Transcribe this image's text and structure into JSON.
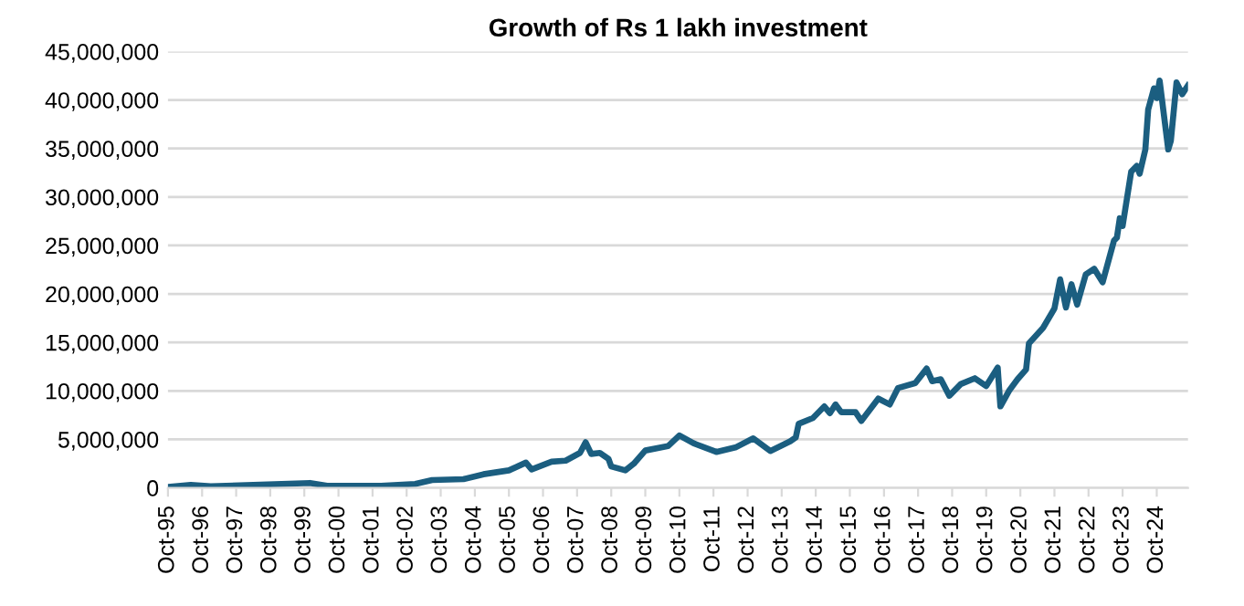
{
  "chart_data": {
    "type": "line",
    "title": "Growth of Rs 1 lakh investment",
    "x": [
      "1995-10",
      "1996-06",
      "1997-01",
      "1999-12",
      "2000-06",
      "2002-01",
      "2003-01",
      "2003-07",
      "2004-06",
      "2005-01",
      "2005-10",
      "2006-04",
      "2006-06",
      "2007-01",
      "2007-06",
      "2007-11",
      "2008-01",
      "2008-03",
      "2008-06",
      "2008-09",
      "2008-10",
      "2009-03",
      "2009-06",
      "2009-10",
      "2010-06",
      "2010-10",
      "2011-03",
      "2011-11",
      "2012-06",
      "2012-12",
      "2013-06",
      "2014-01",
      "2014-03",
      "2014-04",
      "2014-09",
      "2015-01",
      "2015-03",
      "2015-05",
      "2015-07",
      "2015-12",
      "2016-02",
      "2016-08",
      "2016-12",
      "2017-03",
      "2017-09",
      "2018-01",
      "2018-03",
      "2018-06",
      "2018-09",
      "2019-01",
      "2019-06",
      "2019-10",
      "2020-02",
      "2020-03",
      "2020-06",
      "2020-09",
      "2020-12",
      "2021-01",
      "2021-06",
      "2021-10",
      "2021-12",
      "2022-02",
      "2022-04",
      "2022-06",
      "2022-09",
      "2022-12",
      "2023-03",
      "2023-07",
      "2023-08",
      "2023-09",
      "2023-10",
      "2024-01",
      "2024-03",
      "2024-04",
      "2024-06",
      "2024-07",
      "2024-09",
      "2024-10",
      "2024-11",
      "2025-02",
      "2025-03",
      "2025-05",
      "2025-07",
      "2025-09"
    ],
    "series": [
      {
        "color": "#1b5e80",
        "values": [
          100000,
          300000,
          150000,
          500000,
          200000,
          200000,
          400000,
          800000,
          900000,
          1400000,
          1800000,
          2600000,
          1900000,
          2700000,
          2800000,
          3600000,
          4700000,
          3500000,
          3600000,
          3000000,
          2200000,
          1800000,
          2500000,
          3850000,
          4300000,
          5400000,
          4600000,
          3700000,
          4200000,
          5100000,
          3800000,
          4800000,
          5200000,
          6600000,
          7200000,
          8400000,
          7700000,
          8600000,
          7800000,
          7800000,
          6900000,
          9200000,
          8600000,
          10300000,
          10800000,
          12300000,
          11000000,
          11200000,
          9500000,
          10700000,
          11300000,
          10500000,
          12400000,
          8400000,
          10000000,
          11200000,
          12200000,
          14900000,
          16500000,
          18500000,
          21500000,
          18600000,
          21000000,
          18900000,
          22000000,
          22600000,
          21200000,
          25500000,
          25800000,
          27800000,
          27000000,
          32600000,
          33200000,
          32400000,
          34900000,
          39000000,
          41200000,
          40200000,
          42000000,
          34900000,
          35800000,
          41800000,
          40600000,
          41500000
        ]
      }
    ],
    "xlim": [
      "1995-10",
      "2025-09"
    ],
    "xticks": [
      {
        "value": "1995-10",
        "label": "Oct-95"
      },
      {
        "value": "1996-10",
        "label": "Oct-96"
      },
      {
        "value": "1997-10",
        "label": "Oct-97"
      },
      {
        "value": "1998-10",
        "label": "Oct-98"
      },
      {
        "value": "1999-10",
        "label": "Oct-99"
      },
      {
        "value": "2000-10",
        "label": "Oct-00"
      },
      {
        "value": "2001-10",
        "label": "Oct-01"
      },
      {
        "value": "2002-10",
        "label": "Oct-02"
      },
      {
        "value": "2003-10",
        "label": "Oct-03"
      },
      {
        "value": "2004-10",
        "label": "Oct-04"
      },
      {
        "value": "2005-10",
        "label": "Oct-05"
      },
      {
        "value": "2006-10",
        "label": "Oct-06"
      },
      {
        "value": "2007-10",
        "label": "Oct-07"
      },
      {
        "value": "2008-10",
        "label": "Oct-08"
      },
      {
        "value": "2009-10",
        "label": "Oct-09"
      },
      {
        "value": "2010-10",
        "label": "Oct-10"
      },
      {
        "value": "2011-10",
        "label": "Oct-11"
      },
      {
        "value": "2012-10",
        "label": "Oct-12"
      },
      {
        "value": "2013-10",
        "label": "Oct-13"
      },
      {
        "value": "2014-10",
        "label": "Oct-14"
      },
      {
        "value": "2015-10",
        "label": "Oct-15"
      },
      {
        "value": "2016-10",
        "label": "Oct-16"
      },
      {
        "value": "2017-10",
        "label": "Oct-17"
      },
      {
        "value": "2018-10",
        "label": "Oct-18"
      },
      {
        "value": "2019-10",
        "label": "Oct-19"
      },
      {
        "value": "2020-10",
        "label": "Oct-20"
      },
      {
        "value": "2021-10",
        "label": "Oct-21"
      },
      {
        "value": "2022-10",
        "label": "Oct-22"
      },
      {
        "value": "2023-10",
        "label": "Oct-23"
      },
      {
        "value": "2024-10",
        "label": "Oct-24"
      }
    ],
    "ylim": [
      0,
      45000000
    ],
    "yticks": [
      {
        "value": 0,
        "label": "0"
      },
      {
        "value": 5000000,
        "label": "5,000,000"
      },
      {
        "value": 10000000,
        "label": "10,000,000"
      },
      {
        "value": 15000000,
        "label": "15,000,000"
      },
      {
        "value": 20000000,
        "label": "20,000,000"
      },
      {
        "value": 25000000,
        "label": "25,000,000"
      },
      {
        "value": 30000000,
        "label": "30,000,000"
      },
      {
        "value": 35000000,
        "label": "35,000,000"
      },
      {
        "value": 40000000,
        "label": "40,000,000"
      },
      {
        "value": 45000000,
        "label": "45,000,000"
      }
    ],
    "grid": "y",
    "legend": false,
    "marker": "none",
    "line_style": "solid"
  }
}
